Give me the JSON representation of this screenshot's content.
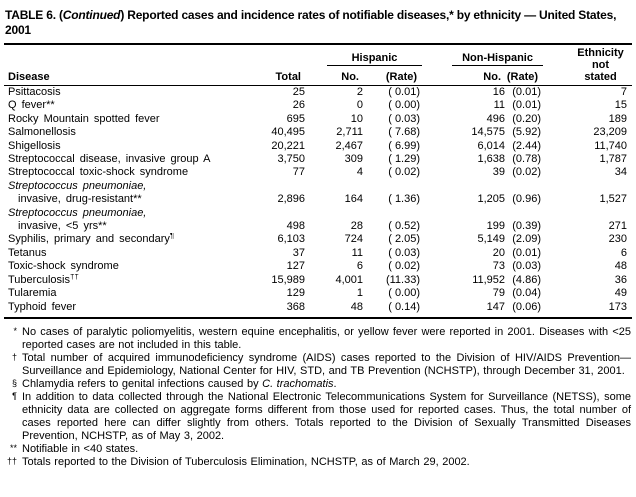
{
  "title": {
    "segments": [
      {
        "t": "TABLE 6. ("
      },
      {
        "t": "Continued",
        "i": true
      },
      {
        "t": ") Reported cases and incidence rates of notifiable diseases,* by ethnicity — United States, 2001"
      }
    ]
  },
  "header": {
    "disease": "Disease",
    "total": "Total",
    "hispanic": "Hispanic",
    "non_hispanic": "Non-Hispanic",
    "no": "No.",
    "rate": "(Rate)",
    "ethnicity": [
      "Ethnicity",
      "not",
      "stated"
    ]
  },
  "table": {
    "rows": [
      {
        "name": "Psittacosis",
        "values": [
          "25",
          "2",
          "( 0.01)",
          "16",
          "(0.01)",
          "7"
        ]
      },
      {
        "name": "Q fever**",
        "values": [
          "26",
          "0",
          "( 0.00)",
          "11",
          "(0.01)",
          "15"
        ]
      },
      {
        "name": "Rocky Mountain spotted fever",
        "values": [
          "695",
          "10",
          "( 0.03)",
          "496",
          "(0.20)",
          "189"
        ]
      },
      {
        "name": "Salmonellosis",
        "values": [
          "40,495",
          "2,711",
          "( 7.68)",
          "14,575",
          "(5.92)",
          "23,209"
        ]
      },
      {
        "name": "Shigellosis",
        "values": [
          "20,221",
          "2,467",
          "( 6.99)",
          "6,014",
          "(2.44)",
          "11,740"
        ]
      },
      {
        "name": "Streptococcal disease, invasive group A",
        "values": [
          "3,750",
          "309",
          "( 1.29)",
          "1,638",
          "(0.78)",
          "1,787"
        ]
      },
      {
        "name": "Streptococcal toxic-shock syndrome",
        "values": [
          "77",
          "4",
          "( 0.02)",
          "39",
          "(0.02)",
          "34"
        ]
      },
      {
        "name": "Streptococcus pneumoniae,",
        "italic": true,
        "values": null
      },
      {
        "name": "invasive, drug-resistant**",
        "indent": true,
        "values": [
          "2,896",
          "164",
          "( 1.36)",
          "1,205",
          "(0.96)",
          "1,527"
        ]
      },
      {
        "name": "Streptococcus pneumoniae,",
        "italic": true,
        "values": null
      },
      {
        "name": "invasive, <5 yrs**",
        "indent": true,
        "values": [
          "498",
          "28",
          "( 0.52)",
          "199",
          "(0.39)",
          "271"
        ]
      },
      {
        "name": "Syphilis, primary and secondary",
        "sup": "¶",
        "values": [
          "6,103",
          "724",
          "( 2.05)",
          "5,149",
          "(2.09)",
          "230"
        ]
      },
      {
        "name": "Tetanus",
        "values": [
          "37",
          "11",
          "( 0.03)",
          "20",
          "(0.01)",
          "6"
        ]
      },
      {
        "name": "Toxic-shock syndrome",
        "values": [
          "127",
          "6",
          "( 0.02)",
          "73",
          "(0.03)",
          "48"
        ]
      },
      {
        "name": "Tuberculosis",
        "sup": "††",
        "values": [
          "15,989",
          "4,001",
          "(11.33)",
          "11,952",
          "(4.86)",
          "36"
        ]
      },
      {
        "name": "Tularemia",
        "values": [
          "129",
          "1",
          "( 0.00)",
          "79",
          "(0.04)",
          "49"
        ]
      },
      {
        "name": "Typhoid fever",
        "values": [
          "368",
          "48",
          "( 0.14)",
          "147",
          "(0.06)",
          "173"
        ]
      }
    ]
  },
  "footnotes": [
    {
      "marker": "*",
      "segments": [
        {
          "t": "No cases of paralytic poliomyelitis, western equine encephalitis, or yellow fever were reported in 2001. Diseases with <25 reported cases are not included in this table."
        }
      ]
    },
    {
      "marker": "†",
      "segments": [
        {
          "t": "Total number of acquired immunodeficiency syndrome (AIDS) cases reported to the Division of HIV/AIDS Prevention—Surveillance and Epidemiology, National Center for HIV, STD, and TB Prevention (NCHSTP), through December 31, 2001."
        }
      ]
    },
    {
      "marker": "§",
      "segments": [
        {
          "t": "Chlamydia refers to genital infections caused by "
        },
        {
          "t": "C. trachomatis",
          "i": true
        },
        {
          "t": "."
        }
      ]
    },
    {
      "marker": "¶",
      "segments": [
        {
          "t": "In addition to data collected through the National Electronic Telecommunications System for Surveillance (NETSS), some ethnicity data are collected on aggregate forms different from those used for reported cases. Thus, the total number of cases reported here can differ slightly from others. Totals reported to the Division of Sexually Transmitted Diseases Prevention, NCHSTP, as of May 3, 2002."
        }
      ]
    },
    {
      "marker": "**",
      "segments": [
        {
          "t": "Notifiable in <40 states."
        }
      ]
    },
    {
      "marker": "††",
      "segments": [
        {
          "t": "Totals reported to the Division of Tuberculosis Elimination, NCHSTP, as of March 29, 2002."
        }
      ]
    }
  ]
}
